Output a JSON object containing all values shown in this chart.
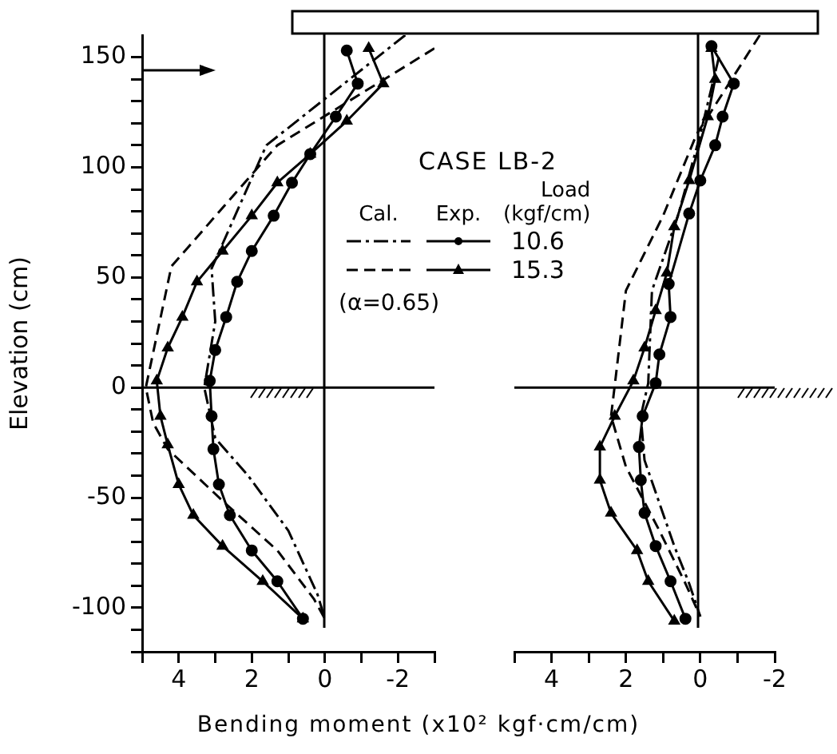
{
  "chart_data": [
    {
      "type": "line",
      "xlabel": "Bending moment (x10² kgf·cm/cm)",
      "ylabel": "Elevation (cm)",
      "legend_title": "CASE LB-2",
      "legend": "top right",
      "annotations": [
        "Cal.",
        "Exp.",
        "Load (kgf/cm)",
        "(α=0.65)"
      ],
      "xlim": [
        5,
        -3
      ],
      "xticks": [
        {
          "value": 5,
          "label": null
        },
        4,
        {
          "value": 3,
          "label": null
        },
        2,
        {
          "value": 1,
          "label": null
        },
        0,
        {
          "value": -1,
          "label": null
        },
        -2,
        {
          "value": -3,
          "label": null
        }
      ],
      "ylim": [
        -120,
        160
      ],
      "yticks": [
        {
          "value": -120,
          "label": null
        },
        {
          "value": -110,
          "label": null
        },
        -100,
        {
          "value": -90,
          "label": null
        },
        {
          "value": -80,
          "label": null
        },
        {
          "value": -70,
          "label": null
        },
        {
          "value": -60,
          "label": null
        },
        -50,
        {
          "value": -40,
          "label": null
        },
        {
          "value": -30,
          "label": null
        },
        {
          "value": -20,
          "label": null
        },
        {
          "value": -10,
          "label": null
        },
        0,
        {
          "value": 10,
          "label": null
        },
        {
          "value": 20,
          "label": null
        },
        {
          "value": 30,
          "label": null
        },
        {
          "value": 40,
          "label": null
        },
        50,
        {
          "value": 60,
          "label": null
        },
        {
          "value": 70,
          "label": null
        },
        {
          "value": 80,
          "label": null
        },
        {
          "value": 90,
          "label": null
        },
        100,
        {
          "value": 110,
          "label": null
        },
        {
          "value": 120,
          "label": null
        },
        {
          "value": 130,
          "label": null
        },
        {
          "value": 140,
          "label": null
        },
        150
      ],
      "ref_lines": [
        {
          "axis": "y",
          "value": 0
        }
      ],
      "series": [
        {
          "color": "#000000",
          "line_style": "dashdot",
          "marker": "none",
          "x": [
            -2.2,
            1.6,
            3.1,
            3.0,
            3.3,
            3.0,
            2.1,
            1.0,
            0.2,
            0
          ],
          "values": [
            160,
            110,
            54,
            30,
            0,
            -23,
            -40,
            -65,
            -94,
            -105
          ]
        },
        {
          "name": "10.6",
          "color": "#000000",
          "line_style": "solid",
          "marker": "circle",
          "x": [
            -0.6,
            -0.9,
            -0.3,
            0.4,
            0.9,
            1.4,
            2.0,
            2.4,
            2.7,
            3.0,
            3.15,
            3.1,
            3.05,
            2.9,
            2.6,
            2.0,
            1.3,
            0.6
          ],
          "values": [
            153,
            138,
            123,
            106,
            93,
            78,
            62,
            48,
            32,
            17,
            3,
            -13,
            -28,
            -44,
            -58,
            -74,
            -88,
            -105
          ]
        },
        {
          "color": "#000000",
          "line_style": "dashed",
          "marker": "none",
          "x": [
            -3,
            1.3,
            4.2,
            4.9,
            4.7,
            4.3,
            2.7,
            1.3,
            0.3,
            0
          ],
          "values": [
            154,
            110,
            55,
            0,
            -16,
            -28,
            -53,
            -74,
            -96,
            -105
          ]
        },
        {
          "name": "15.3",
          "color": "#000000",
          "line_style": "solid",
          "marker": "triangle",
          "x": [
            -1.2,
            -1.6,
            -0.6,
            0.4,
            1.3,
            2.0,
            2.8,
            3.5,
            3.9,
            4.3,
            4.6,
            4.5,
            4.3,
            4.0,
            3.6,
            2.8,
            1.7,
            0.6
          ],
          "values": [
            154,
            138,
            121,
            106,
            93,
            78,
            62,
            48,
            32,
            18,
            3,
            -13,
            -26,
            -44,
            -58,
            -72,
            -88,
            -105
          ]
        }
      ]
    },
    {
      "type": "line",
      "tick_labels": "x",
      "xlim": [
        5,
        -2
      ],
      "xticks": [
        {
          "value": 5,
          "label": null
        },
        4,
        {
          "value": 3,
          "label": null
        },
        2,
        {
          "value": 1,
          "label": null
        },
        0,
        {
          "value": -1,
          "label": null
        },
        -2
      ],
      "ylim": [
        -120,
        160
      ],
      "ref_lines": [
        {
          "axis": "y",
          "value": 0
        }
      ],
      "series": [
        {
          "color": "#000000",
          "line_style": "dashdot",
          "marker": "none",
          "x": [
            -0.5,
            0.0,
            0.6,
            1.3,
            1.4,
            1.6,
            1.5,
            0.7,
            0.3,
            0
          ],
          "values": [
            150,
            115,
            78,
            44,
            2,
            -13,
            -33,
            -72,
            -89,
            -104
          ]
        },
        {
          "color": "#000000",
          "line_style": "solid",
          "marker": "circle",
          "x": [
            -0.3,
            -0.9,
            -0.6,
            -0.4,
            0.0,
            0.3,
            0.85,
            0.8,
            1.1,
            1.2,
            1.55,
            1.65,
            1.6,
            1.5,
            1.2,
            0.8,
            0.4
          ],
          "values": [
            155,
            138,
            123,
            110,
            94,
            79,
            47,
            32,
            15,
            2,
            -13,
            -27,
            -42,
            -57,
            -72,
            -88,
            -105
          ]
        },
        {
          "color": "#000000",
          "line_style": "dashed",
          "marker": "none",
          "x": [
            -1.6,
            0.1,
            1.0,
            2.0,
            2.3,
            2.4,
            2.0,
            1.1,
            0.4,
            0
          ],
          "values": [
            160,
            115,
            78,
            44,
            1,
            -13,
            -36,
            -65,
            -89,
            -104
          ]
        },
        {
          "color": "#000000",
          "line_style": "solid",
          "marker": "triangle",
          "x": [
            -0.3,
            -0.4,
            -0.2,
            0.3,
            0.7,
            0.9,
            1.2,
            1.5,
            1.8,
            2.3,
            2.7,
            2.7,
            2.4,
            1.7,
            1.4,
            0.7
          ],
          "values": [
            154,
            140,
            123,
            94,
            73,
            52,
            35,
            18,
            3,
            -13,
            -27,
            -42,
            -57,
            -74,
            -88,
            -106
          ]
        }
      ]
    }
  ]
}
